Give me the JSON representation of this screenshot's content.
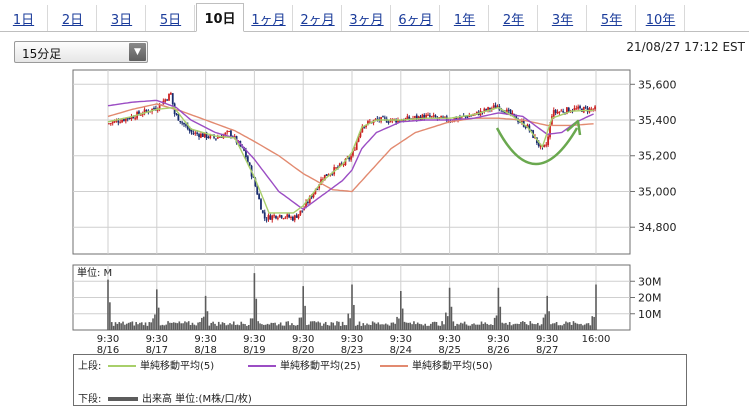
{
  "tabs": [
    {
      "label": "1日",
      "active": false
    },
    {
      "label": "2日",
      "active": false
    },
    {
      "label": "3日",
      "active": false
    },
    {
      "label": "5日",
      "active": false
    },
    {
      "label": "10日",
      "active": true
    },
    {
      "label": "1ヶ月",
      "active": false
    },
    {
      "label": "2ヶ月",
      "active": false
    },
    {
      "label": "3ヶ月",
      "active": false
    },
    {
      "label": "6ヶ月",
      "active": false
    },
    {
      "label": "1年",
      "active": false
    },
    {
      "label": "2年",
      "active": false
    },
    {
      "label": "3年",
      "active": false
    },
    {
      "label": "5年",
      "active": false
    },
    {
      "label": "10年",
      "active": false
    }
  ],
  "interval_select": {
    "value": "15分足"
  },
  "timestamp": "21/08/27 17:12 EST",
  "legend": {
    "upper_label": "上段:",
    "lower_label": "下段:",
    "ma5": "単純移動平均(5)",
    "ma25": "単純移動平均(25)",
    "ma50": "単純移動平均(50)",
    "volume": "出来高 単位:(M株/口/枚)"
  },
  "colors": {
    "candle": "#1a2d6e",
    "candle_up": "#cc2222",
    "ma5": "#a8cf6a",
    "ma25": "#9b4dc4",
    "ma50": "#e28a70",
    "volume": "#5c5c5c",
    "annotation": "#6aa84f"
  },
  "chart_data": [
    {
      "type": "candlestick",
      "x_ticks": [
        {
          "time": "9:30",
          "date": "8/16"
        },
        {
          "time": "9:30",
          "date": "8/17"
        },
        {
          "time": "9:30",
          "date": "8/18"
        },
        {
          "time": "9:30",
          "date": "8/19"
        },
        {
          "time": "9:30",
          "date": "8/20"
        },
        {
          "time": "9:30",
          "date": "8/23"
        },
        {
          "time": "9:30",
          "date": "8/24"
        },
        {
          "time": "9:30",
          "date": "8/25"
        },
        {
          "time": "9:30",
          "date": "8/26"
        },
        {
          "time": "9:30",
          "date": "8/27"
        },
        {
          "time": "16:00",
          "date": ""
        }
      ],
      "y_ticks": [
        "35,600",
        "35,400",
        "35,200",
        "35,000",
        "34,800"
      ],
      "ylim": [
        34650,
        35680
      ],
      "grid": true,
      "close_path": [
        [
          0,
          35380
        ],
        [
          0.5,
          35420
        ],
        [
          1,
          35470
        ],
        [
          1.3,
          35550
        ],
        [
          1.35,
          35440
        ],
        [
          1.7,
          35330
        ],
        [
          2.2,
          35300
        ],
        [
          2.5,
          35330
        ],
        [
          2.8,
          35220
        ],
        [
          3,
          35050
        ],
        [
          3.2,
          34850
        ],
        [
          3.5,
          34870
        ],
        [
          3.8,
          34850
        ],
        [
          4,
          34900
        ],
        [
          4.4,
          35080
        ],
        [
          4.8,
          35150
        ],
        [
          5,
          35200
        ],
        [
          5.2,
          35370
        ],
        [
          5.5,
          35400
        ],
        [
          6,
          35400
        ],
        [
          6.5,
          35420
        ],
        [
          7,
          35400
        ],
        [
          7.5,
          35430
        ],
        [
          8,
          35480
        ],
        [
          8.3,
          35420
        ],
        [
          8.6,
          35360
        ],
        [
          8.9,
          35230
        ],
        [
          9,
          35270
        ],
        [
          9.1,
          35440
        ],
        [
          9.5,
          35460
        ],
        [
          10,
          35460
        ]
      ],
      "ma5": [
        [
          0,
          35390
        ],
        [
          0.5,
          35420
        ],
        [
          1,
          35460
        ],
        [
          1.35,
          35470
        ],
        [
          1.7,
          35350
        ],
        [
          2.2,
          35310
        ],
        [
          2.6,
          35300
        ],
        [
          3,
          35080
        ],
        [
          3.3,
          34880
        ],
        [
          3.8,
          34880
        ],
        [
          4,
          34920
        ],
        [
          4.4,
          35060
        ],
        [
          4.8,
          35150
        ],
        [
          5,
          35220
        ],
        [
          5.2,
          35360
        ],
        [
          5.5,
          35400
        ],
        [
          6,
          35400
        ],
        [
          6.5,
          35410
        ],
        [
          7,
          35410
        ],
        [
          7.5,
          35430
        ],
        [
          8,
          35470
        ],
        [
          8.3,
          35420
        ],
        [
          8.6,
          35360
        ],
        [
          8.9,
          35250
        ],
        [
          9.1,
          35410
        ],
        [
          9.5,
          35450
        ],
        [
          10,
          35455
        ]
      ],
      "ma25": [
        [
          0,
          35480
        ],
        [
          0.5,
          35500
        ],
        [
          1,
          35510
        ],
        [
          1.4,
          35470
        ],
        [
          1.7,
          35400
        ],
        [
          2.2,
          35330
        ],
        [
          2.6,
          35300
        ],
        [
          3,
          35180
        ],
        [
          3.5,
          35000
        ],
        [
          4,
          34900
        ],
        [
          4.4,
          34980
        ],
        [
          4.8,
          35060
        ],
        [
          5,
          35120
        ],
        [
          5.2,
          35240
        ],
        [
          5.5,
          35330
        ],
        [
          6,
          35390
        ],
        [
          6.5,
          35400
        ],
        [
          7,
          35400
        ],
        [
          7.5,
          35410
        ],
        [
          8,
          35440
        ],
        [
          8.5,
          35420
        ],
        [
          9,
          35320
        ],
        [
          9.3,
          35330
        ],
        [
          9.6,
          35390
        ],
        [
          10,
          35440
        ]
      ],
      "ma50": [
        [
          0,
          35420
        ],
        [
          0.5,
          35460
        ],
        [
          1,
          35490
        ],
        [
          1.5,
          35450
        ],
        [
          2,
          35400
        ],
        [
          2.6,
          35340
        ],
        [
          3,
          35280
        ],
        [
          3.5,
          35200
        ],
        [
          4,
          35100
        ],
        [
          4.6,
          35010
        ],
        [
          5,
          35000
        ],
        [
          5.4,
          35120
        ],
        [
          5.8,
          35240
        ],
        [
          6.3,
          35330
        ],
        [
          7,
          35390
        ],
        [
          7.5,
          35410
        ],
        [
          8,
          35410
        ],
        [
          8.5,
          35400
        ],
        [
          9,
          35370
        ],
        [
          9.5,
          35370
        ],
        [
          10,
          35380
        ]
      ],
      "annotation": "curved-arrow"
    },
    {
      "type": "bar",
      "title": "単位: M",
      "y_ticks": [
        "30M",
        "20M",
        "10M"
      ],
      "ylim": [
        0,
        40
      ],
      "session_spikes": [
        31,
        25,
        21,
        35,
        27,
        28,
        24,
        26,
        26,
        21,
        28
      ]
    }
  ]
}
